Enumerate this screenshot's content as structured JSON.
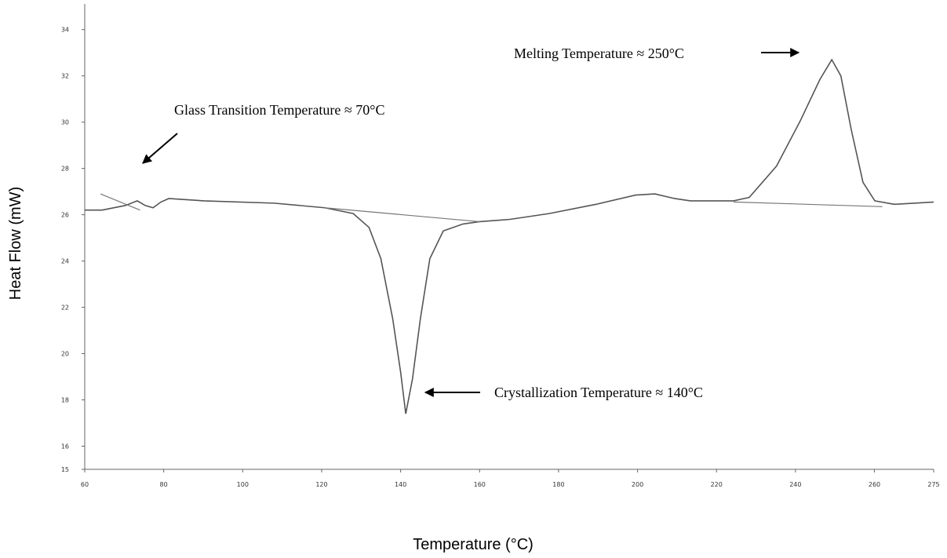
{
  "chart_data": {
    "type": "line",
    "x_label": "Temperature (°C)",
    "y_label": "Heat Flow (mW)",
    "xlim": [
      60,
      275
    ],
    "xticks": [
      60,
      80,
      100,
      120,
      140,
      160,
      180,
      200,
      220,
      240,
      260,
      275
    ],
    "ylim": [
      15,
      34.6
    ],
    "yticks": [
      15,
      16,
      18,
      20,
      22,
      24,
      26,
      28,
      30,
      32,
      34
    ],
    "series": [
      {
        "color": "#555555",
        "x": [
          60,
          64.4,
          70.3,
          73.3,
          75.3,
          77.3,
          79.3,
          81.3,
          90.2,
          108,
          120.8,
          128,
          132,
          135,
          138,
          140,
          141.3,
          143,
          145,
          147.4,
          150.8,
          155.8,
          160,
          167.7,
          177.6,
          189.5,
          199.5,
          204.4,
          209.4,
          213.4,
          224.3,
          228.3,
          235.2,
          241.2,
          246.2,
          249.2,
          251.5,
          254.1,
          257.1,
          260.1,
          265,
          275
        ],
        "values": [
          26.2,
          26.2,
          26.4,
          26.6,
          26.4,
          26.3,
          26.55,
          26.7,
          26.6,
          26.5,
          26.3,
          26.05,
          25.45,
          24.1,
          21.5,
          19.2,
          17.4,
          18.9,
          21.5,
          24.1,
          25.3,
          25.6,
          25.7,
          25.8,
          26.05,
          26.45,
          26.85,
          26.9,
          26.7,
          26.6,
          26.6,
          26.75,
          28.1,
          30.05,
          31.85,
          32.7,
          32.0,
          29.7,
          27.4,
          26.6,
          26.45,
          26.55
        ]
      },
      {
        "color": "#777777",
        "x": [
          120.8,
          160
        ],
        "values": [
          26.3,
          25.7
        ]
      },
      {
        "color": "#777777",
        "x": [
          224.3,
          262
        ],
        "values": [
          26.55,
          26.35
        ]
      },
      {
        "color": "#777777",
        "x": [
          64,
          74
        ],
        "values": [
          26.9,
          26.2
        ]
      }
    ],
    "annotations": [
      "Glass Transition Temperature ≈ 70°C",
      "Melting Temperature ≈ 250°C",
      "Crystallization Temperature ≈ 140°C"
    ]
  }
}
